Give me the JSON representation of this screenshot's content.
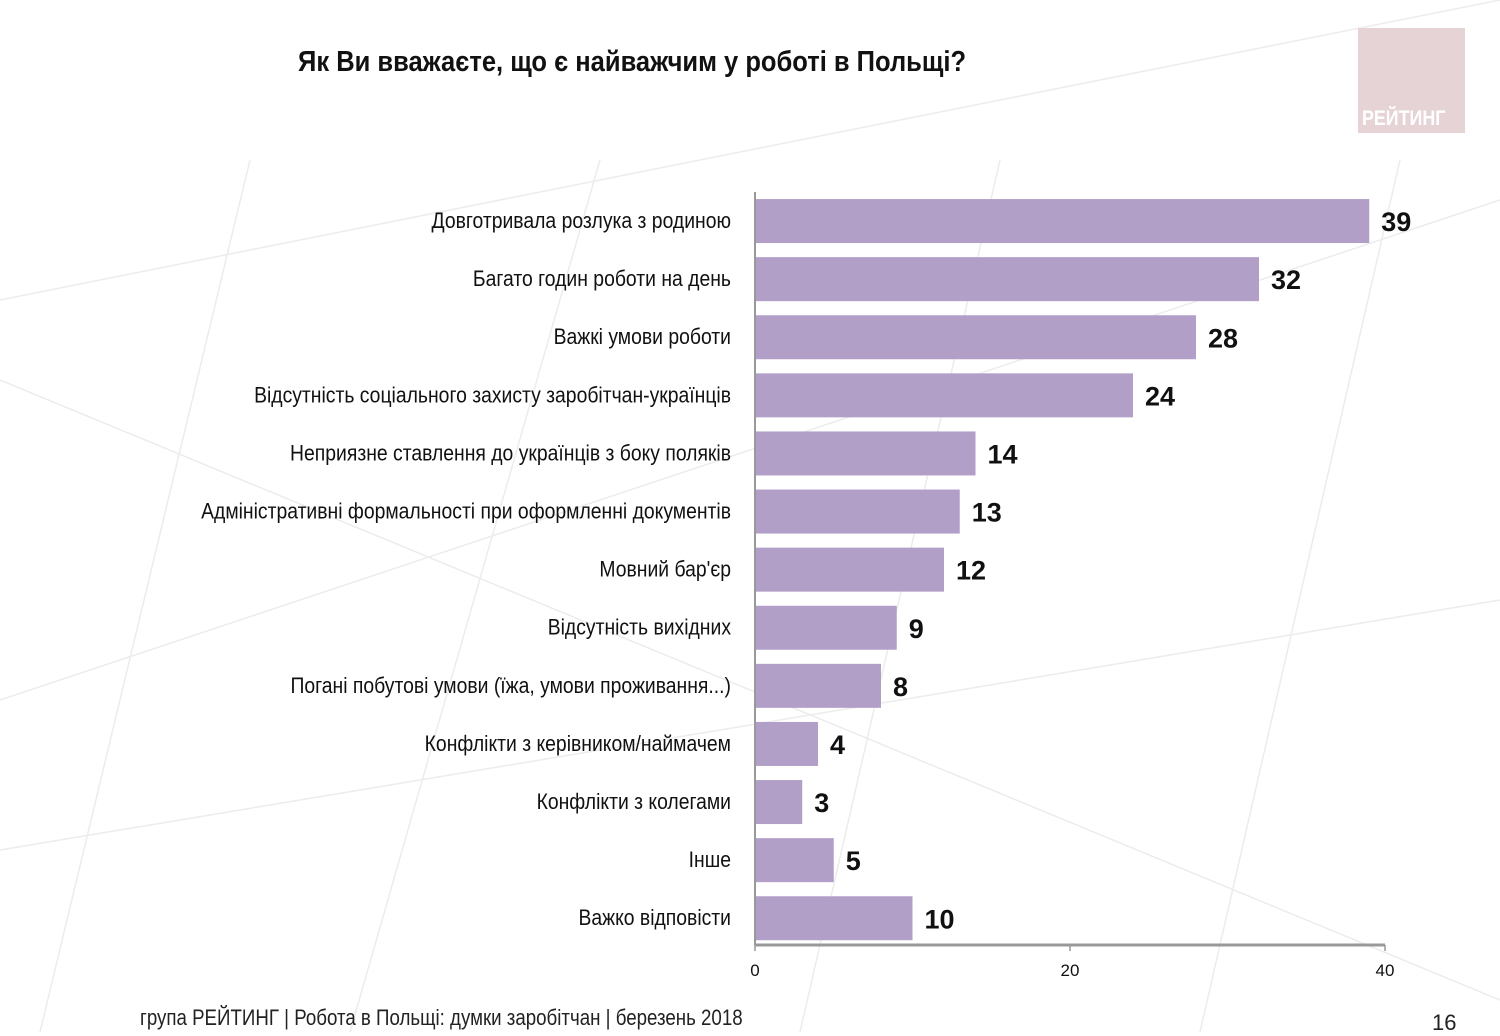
{
  "header": {
    "title": "Як Ви вважаєте, що є найважчим у роботі в Польщі?",
    "logo_text": "РЕЙТИНГ"
  },
  "footer": {
    "text": "група РЕЙТИНГ  | Робота в Польщі: думки заробітчан  |  березень 2018",
    "page_number": "16"
  },
  "colors": {
    "bar": "#b29fc8",
    "axis": "#999999"
  },
  "chart_data": {
    "type": "bar",
    "orientation": "horizontal",
    "title": "Як Ви вважаєте, що є найважчим у роботі в Польщі?",
    "categories": [
      "Довготривала розлука з родиною",
      "Багато годин роботи на день",
      "Важкі умови роботи",
      "Відсутність соціального захисту заробітчан-українців",
      "Неприязне ставлення до українців з боку поляків",
      "Адміністративні формальності при оформленні документів",
      "Мовний бар'єр",
      "Відсутність вихідних",
      "Погані побутові умови (їжа, умови проживання...)",
      "Конфлікти з керівником/наймачем",
      "Конфлікти з колегами",
      "Інше",
      "Важко відповісти"
    ],
    "values": [
      39,
      32,
      28,
      24,
      14,
      13,
      12,
      9,
      8,
      4,
      3,
      5,
      10
    ],
    "xlim": [
      0,
      40
    ],
    "xticks": [
      "0",
      "20",
      "40"
    ],
    "xlabel": "",
    "ylabel": "",
    "grid": false,
    "legend": "none"
  }
}
